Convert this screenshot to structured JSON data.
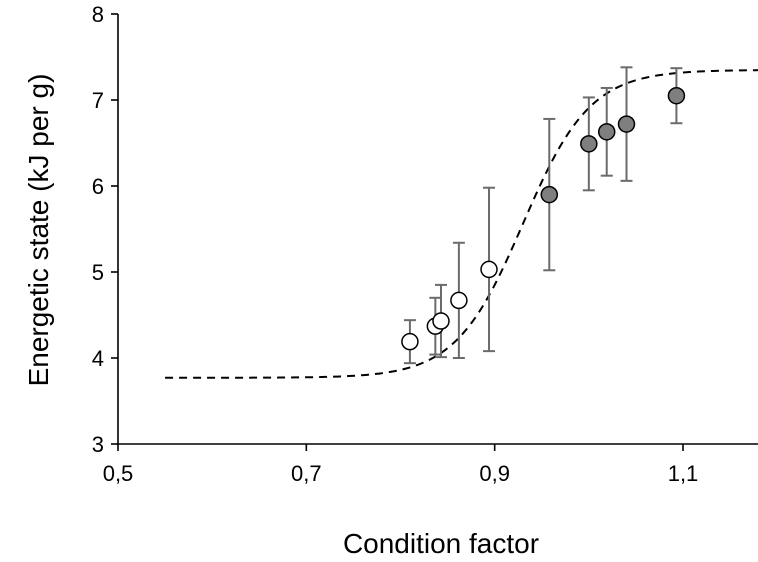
{
  "chart_data": {
    "type": "scatter",
    "title": "",
    "xlabel": "Condition factor",
    "ylabel": "Energetic state (kJ per g)",
    "xlim": [
      0.5,
      1.19
    ],
    "ylim": [
      3,
      8
    ],
    "x_ticks": [
      0.5,
      0.7,
      0.9,
      1.1
    ],
    "x_tick_labels": [
      "0,5",
      "0,7",
      "0,9",
      "1,1"
    ],
    "y_ticks": [
      3,
      4,
      5,
      6,
      7,
      8
    ],
    "y_tick_labels": [
      "3",
      "4",
      "5",
      "6",
      "7",
      "8"
    ],
    "grid": false,
    "series": [
      {
        "marker": "open-circle",
        "color": "#ffffff",
        "points": [
          {
            "x": 0.81,
            "y": 4.19,
            "err": 0.25
          },
          {
            "x": 0.837,
            "y": 4.37,
            "err": 0.33
          },
          {
            "x": 0.843,
            "y": 4.43,
            "err": 0.42
          },
          {
            "x": 0.862,
            "y": 4.67,
            "err": 0.67
          },
          {
            "x": 0.894,
            "y": 5.03,
            "err": 0.95
          }
        ]
      },
      {
        "marker": "filled-circle",
        "color": "#7f7f7f",
        "points": [
          {
            "x": 0.958,
            "y": 5.9,
            "err": 0.88
          },
          {
            "x": 1.0,
            "y": 6.49,
            "err": 0.54
          },
          {
            "x": 1.019,
            "y": 6.63,
            "err": 0.51
          },
          {
            "x": 1.04,
            "y": 6.72,
            "err": 0.66
          },
          {
            "x": 1.093,
            "y": 7.05,
            "err": 0.32
          }
        ]
      }
    ],
    "fit_curve": {
      "style": "dashed",
      "color": "#000000",
      "x_range": [
        0.55,
        1.19
      ],
      "function": "logistic",
      "lower": 3.77,
      "upper": 7.35,
      "midpoint": 0.93,
      "slope": 28
    }
  }
}
